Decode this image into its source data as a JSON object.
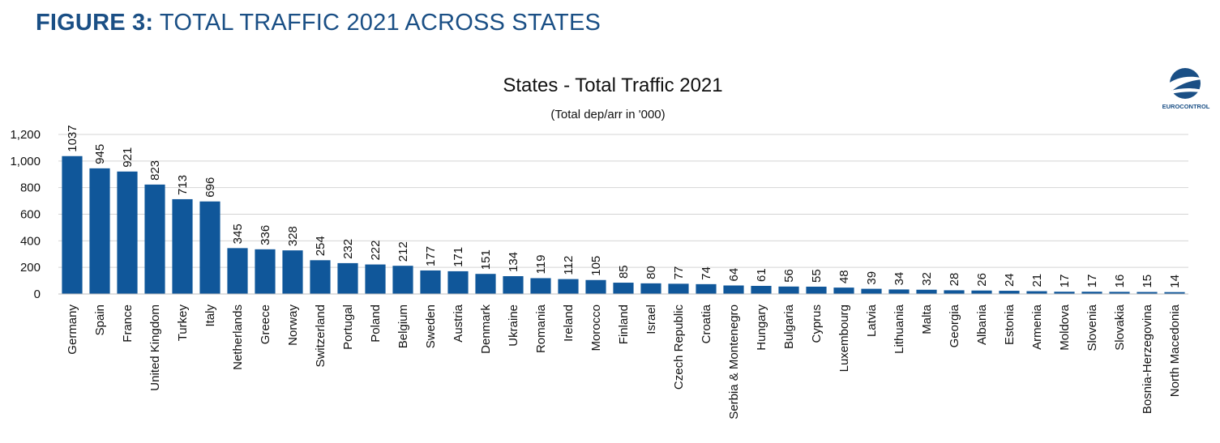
{
  "figure": {
    "title_lead": "FIGURE 3:",
    "title_rest": " TOTAL TRAFFIC 2021 ACROSS STATES"
  },
  "logo": {
    "icon": "eurocontrol-logo-icon",
    "text": "EUROCONTROL"
  },
  "colors": {
    "bar": "#10579a",
    "title": "#1a4f85",
    "grid": "#d4d4d4"
  },
  "chart_data": {
    "type": "bar",
    "title": "States - Total Traffic 2021",
    "subtitle": "(Total dep/arr in '000)",
    "xlabel": "",
    "ylabel": "",
    "ylim": [
      0,
      1200
    ],
    "yticks": [
      0,
      200,
      400,
      600,
      800,
      1000,
      1200
    ],
    "ytick_labels": [
      "0",
      "200",
      "400",
      "600",
      "800",
      "1,000",
      "1,200"
    ],
    "grid": true,
    "categories": [
      "Germany",
      "Spain",
      "France",
      "United Kingdom",
      "Turkey",
      "Italy",
      "Netherlands",
      "Greece",
      "Norway",
      "Switzerland",
      "Portugal",
      "Poland",
      "Belgium",
      "Sweden",
      "Austria",
      "Denmark",
      "Ukraine",
      "Romania",
      "Ireland",
      "Morocco",
      "Finland",
      "Israel",
      "Czech Republic",
      "Croatia",
      "Serbia & Montenegro",
      "Hungary",
      "Bulgaria",
      "Cyprus",
      "Luxembourg",
      "Latvia",
      "Lithuania",
      "Malta",
      "Georgia",
      "Albania",
      "Estonia",
      "Armenia",
      "Moldova",
      "Slovenia",
      "Slovakia",
      "Bosnia-Herzegovina",
      "North Macedonia"
    ],
    "values": [
      1037,
      945,
      921,
      823,
      713,
      696,
      345,
      336,
      328,
      254,
      232,
      222,
      212,
      177,
      171,
      151,
      134,
      119,
      112,
      105,
      85,
      80,
      77,
      74,
      64,
      61,
      56,
      55,
      48,
      39,
      34,
      32,
      28,
      26,
      24,
      21,
      17,
      17,
      16,
      15,
      14
    ]
  }
}
